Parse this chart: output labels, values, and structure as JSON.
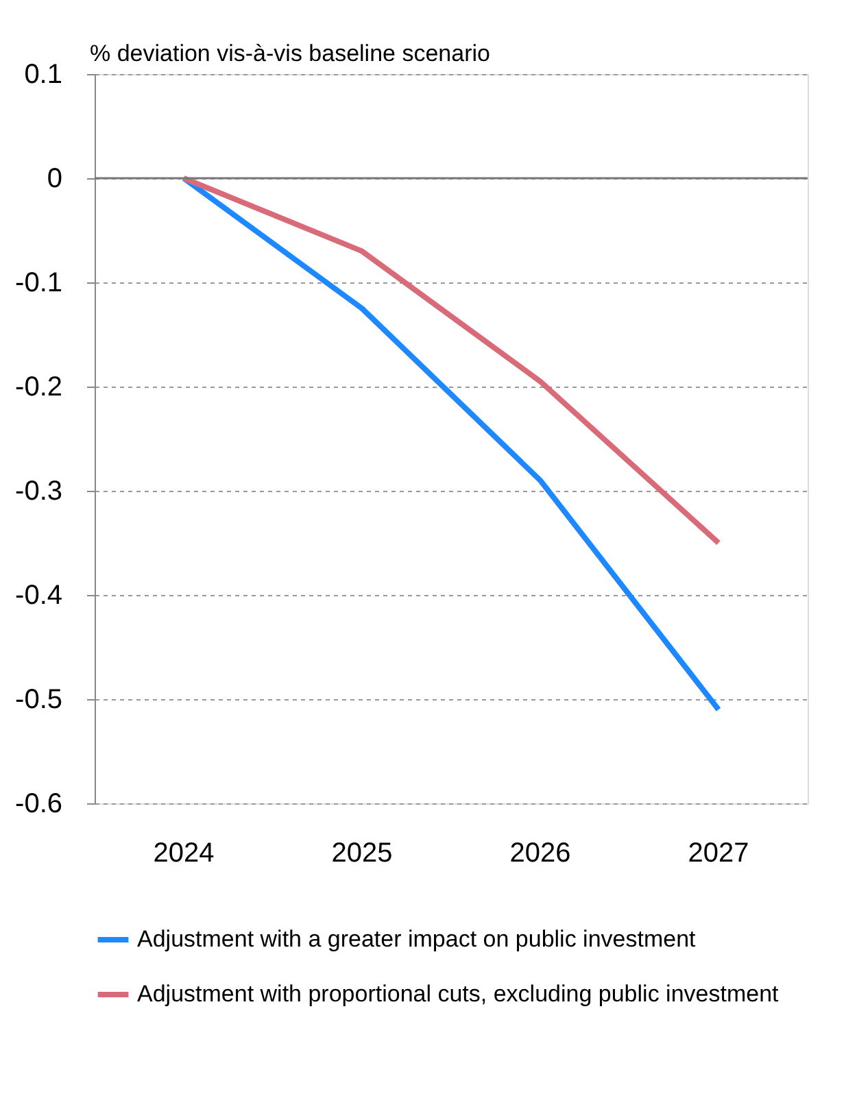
{
  "chart_data": {
    "type": "line",
    "ylabel": "% deviation vis-à-vis baseline scenario",
    "categories": [
      "2024",
      "2025",
      "2026",
      "2027"
    ],
    "series": [
      {
        "name": "Adjustment with a greater impact on public investment",
        "color": "#1e88ff",
        "values": [
          0,
          -0.125,
          -0.29,
          -0.51
        ]
      },
      {
        "name": "Adjustment with proportional cuts, excluding public investment",
        "color": "#d96b78",
        "values": [
          0,
          -0.07,
          -0.195,
          -0.35
        ]
      }
    ],
    "ylim": [
      -0.6,
      0.1
    ],
    "yticks": [
      -0.6,
      -0.5,
      -0.4,
      -0.3,
      -0.2,
      -0.1,
      0,
      0.1
    ],
    "ref_lines": [
      {
        "axis": "y",
        "value": 0,
        "color": "#777777"
      }
    ],
    "grid": "y",
    "legend": "bottom",
    "marker": "none",
    "line_style": "solid"
  }
}
